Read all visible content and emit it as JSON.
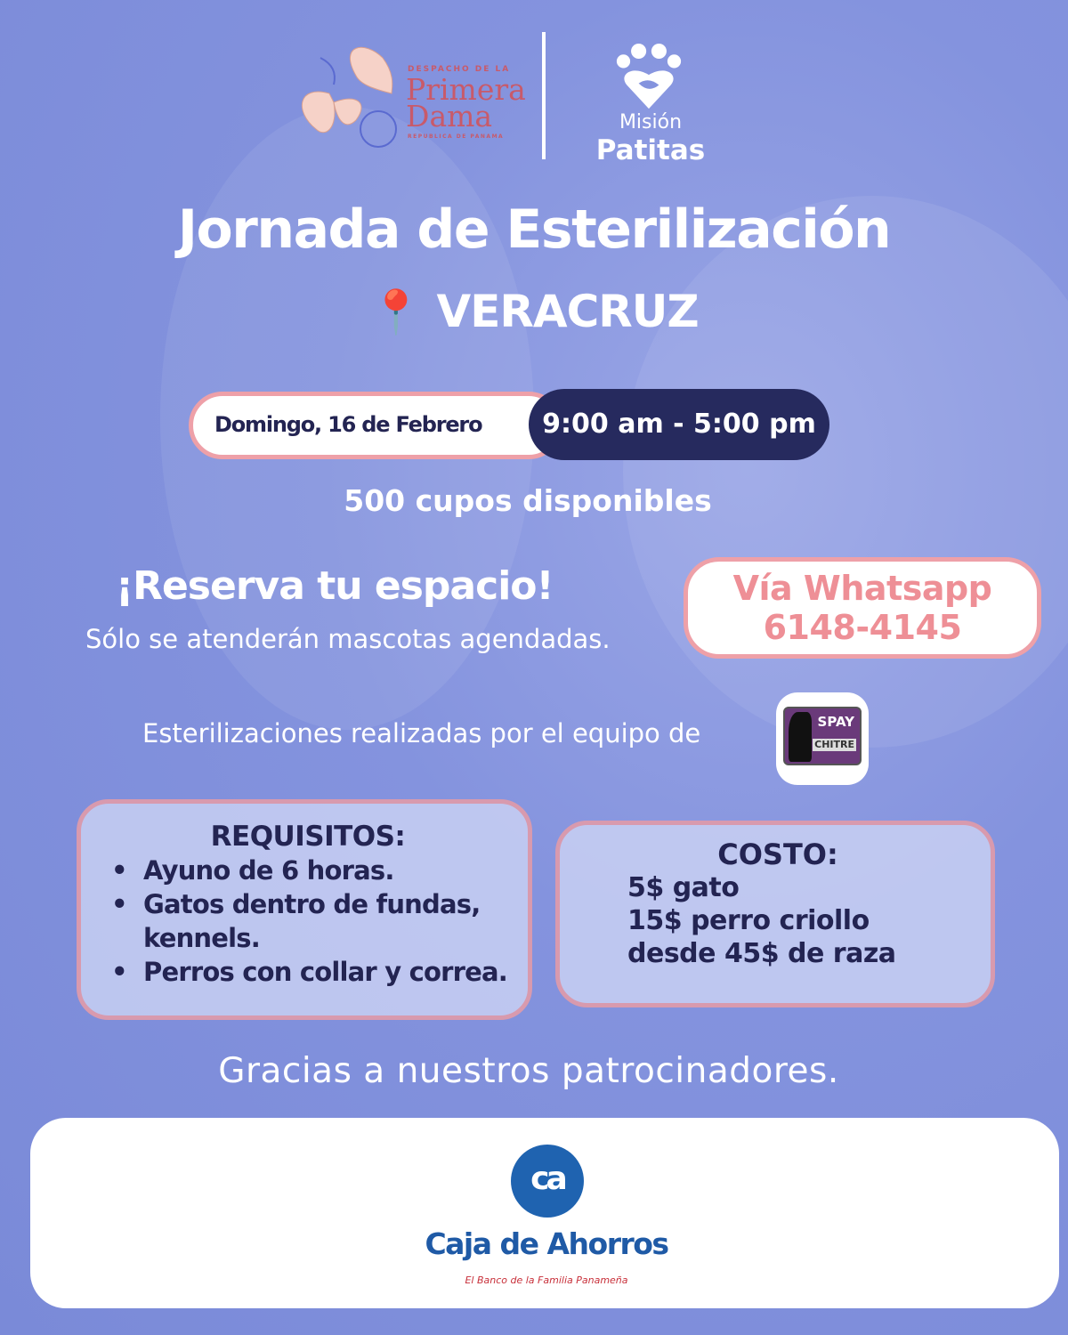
{
  "logos": {
    "primera_dama": {
      "top": "DESPACHO DE LA",
      "name_line1": "Primera",
      "name_line2": "Dama",
      "bottom": "REPUBLICA DE PANAMA"
    },
    "mision_patitas": {
      "line1": "Misión",
      "line2": "Patitas"
    }
  },
  "title": "Jornada de Esterilización",
  "location": {
    "icon": "pin-icon",
    "name": "VERACRUZ"
  },
  "date": "Domingo, 16 de Febrero",
  "time": "9:00 am - 5:00 pm",
  "slots": "500 cupos disponibles",
  "reserve": {
    "heading": "¡Reserva tu espacio!",
    "note": "Sólo se atenderán mascotas agendadas."
  },
  "whatsapp": {
    "label": "Vía Whatsapp",
    "number": "6148-4145"
  },
  "team": {
    "text": "Esterilizaciones realizadas por el equipo de",
    "logo_line1": "SPAY",
    "logo_line2": "CHITRE"
  },
  "requirements": {
    "heading": "REQUISITOS:",
    "items": [
      "Ayuno de 6 horas.",
      "Gatos dentro de fundas, kennels.",
      "Perros con collar y correa."
    ]
  },
  "cost": {
    "heading": "COSTO:",
    "items": [
      "5$ gato",
      "15$ perro criollo",
      "desde 45$ de raza"
    ]
  },
  "thanks": "Gracias a nuestros patrocinadores.",
  "sponsor": {
    "monogram": "ca",
    "name": "Caja de Ahorros",
    "tagline": "El Banco de la Familia Panameña"
  },
  "colors": {
    "background": "#8493de",
    "accent_pink": "#eea0a8",
    "navy": "#262a5e",
    "sponsor_blue": "#1f63b0"
  }
}
